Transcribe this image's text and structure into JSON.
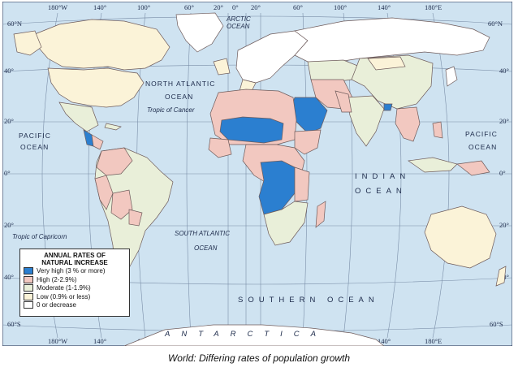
{
  "caption": "World: Differing rates of population growth",
  "lon_ticks": [
    "180°W",
    "140°",
    "100°",
    "60°",
    "20°",
    "0°",
    "20°",
    "60°",
    "100°",
    "140°",
    "180°E"
  ],
  "lat_ticks_left": [
    "60°N",
    "40°",
    "20°",
    "0°",
    "20°",
    "40°",
    "60°S"
  ],
  "lat_ticks_right": [
    "60°N",
    "40°",
    "20°",
    "0°",
    "20°",
    "40°",
    "60°S"
  ],
  "labels": {
    "arctic_ocean": "ARCTIC",
    "arctic_ocean_2": "OCEAN",
    "north_atlantic": "NORTH ATLANTIC",
    "north_atlantic_2": "OCEAN",
    "tropic_cancer": "Tropic of Cancer",
    "pacific_left": "PACIFIC",
    "pacific_left_2": "OCEAN",
    "pacific_right": "PACIFIC",
    "pacific_right_2": "OCEAN",
    "indian": "INDIAN",
    "indian_2": "OCEAN",
    "south_atlantic": "SOUTH ATLANTIC",
    "south_atlantic_2": "OCEAN",
    "tropic_capricorn": "Tropic of Capricorn",
    "southern_ocean": "SOUTHERN OCEAN",
    "antarctica": "ANTARCTICA"
  },
  "legend": {
    "title_line1": "ANNUAL RATES OF",
    "title_line2": "NATURAL INCREASE",
    "items": [
      {
        "label": "Very high (3 % or more)",
        "color": "#2b7fd0"
      },
      {
        "label": "High (2-2.9%)",
        "color": "#f2c8c0"
      },
      {
        "label": "Moderate (1-1.9%)",
        "color": "#e9efd9"
      },
      {
        "label": "Low (0.9% or less)",
        "color": "#fbf3d8"
      },
      {
        "label": "0 or decrease",
        "color": "#ffffff"
      }
    ]
  },
  "colors": {
    "ocean": "#cfe3f1",
    "very_high": "#2b7fd0",
    "high": "#f2c8c0",
    "moderate": "#e9efd9",
    "low": "#fbf3d8",
    "zero": "#ffffff"
  }
}
